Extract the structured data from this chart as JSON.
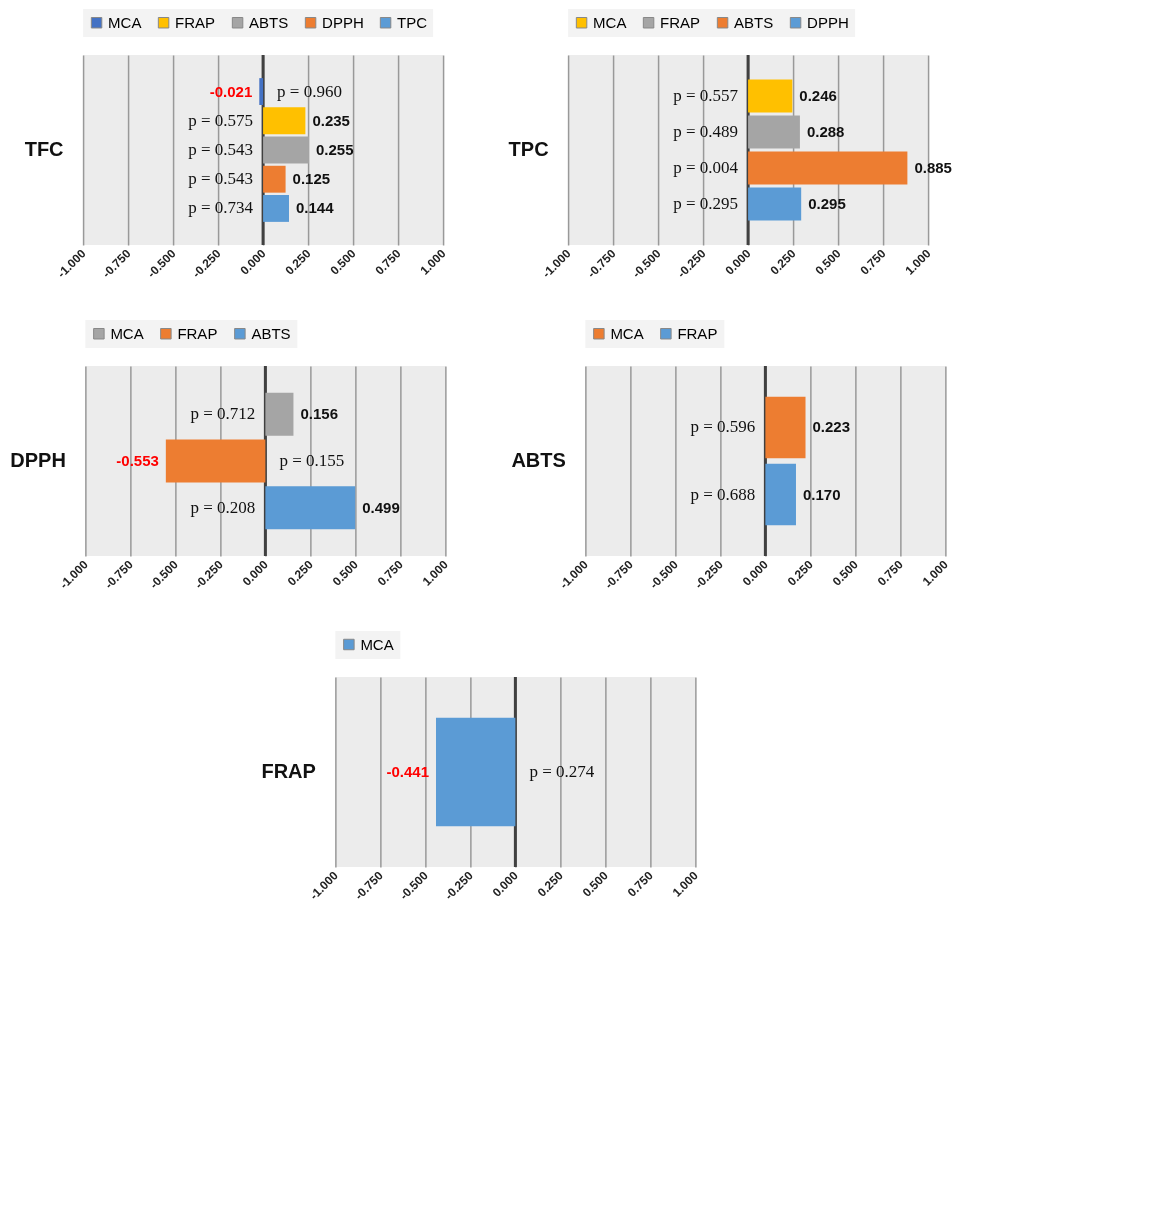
{
  "chart_data": [
    {
      "type": "bar",
      "orientation": "horizontal",
      "categories": [
        "TFC"
      ],
      "legend": "top",
      "grid": "x",
      "series": [
        {
          "name": "MCA",
          "color": "#4472c4",
          "values": [
            -0.021
          ],
          "value_labels": [
            "-0.021"
          ]
        },
        {
          "name": "FRAP",
          "color": "#ffc000",
          "values": [
            0.235
          ],
          "value_labels": [
            "0.235"
          ]
        },
        {
          "name": "ABTS",
          "color": "#a5a5a5",
          "values": [
            0.255
          ],
          "value_labels": [
            "0.255"
          ]
        },
        {
          "name": "DPPH",
          "color": "#ed7d31",
          "values": [
            0.125
          ],
          "value_labels": [
            "0.125"
          ]
        },
        {
          "name": "TPC",
          "color": "#5b9bd5",
          "values": [
            0.144
          ],
          "value_labels": [
            "0.144"
          ]
        }
      ],
      "annotations": [
        "p = 0.960",
        "p = 0.575",
        "p = 0.543",
        "p = 0.543",
        "p = 0.734"
      ],
      "xlim": [
        -1,
        1
      ],
      "xticks": [
        {
          "value": -1,
          "label": "-1.000"
        },
        {
          "value": -0.75,
          "label": "-0.750"
        },
        {
          "value": -0.5,
          "label": "-0.500"
        },
        {
          "value": -0.25,
          "label": "-0.250"
        },
        {
          "value": 0,
          "label": "0.000"
        },
        {
          "value": 0.25,
          "label": "0.250"
        },
        {
          "value": 0.5,
          "label": "0.500"
        },
        {
          "value": 0.75,
          "label": "0.750"
        },
        {
          "value": 1,
          "label": "1.000"
        }
      ],
      "ref_lines": [
        {
          "axis": "x",
          "value": 0,
          "color": "#404040"
        }
      ]
    },
    {
      "type": "bar",
      "orientation": "horizontal",
      "categories": [
        "TPC"
      ],
      "legend": "top",
      "grid": "x",
      "series": [
        {
          "name": "MCA",
          "color": "#ffc000",
          "values": [
            0.246
          ],
          "value_labels": [
            "0.246"
          ]
        },
        {
          "name": "FRAP",
          "color": "#a5a5a5",
          "values": [
            0.288
          ],
          "value_labels": [
            "0.288"
          ]
        },
        {
          "name": "ABTS",
          "color": "#ed7d31",
          "values": [
            0.885
          ],
          "value_labels": [
            "0.885"
          ]
        },
        {
          "name": "DPPH",
          "color": "#5b9bd5",
          "values": [
            0.295
          ],
          "value_labels": [
            "0.295"
          ]
        }
      ],
      "annotations": [
        "p = 0.557",
        "p = 0.489",
        "p = 0.004",
        "p = 0.295"
      ],
      "xlim": [
        -1,
        1
      ],
      "xticks": [
        {
          "value": -1,
          "label": "-1.000"
        },
        {
          "value": -0.75,
          "label": "-0.750"
        },
        {
          "value": -0.5,
          "label": "-0.500"
        },
        {
          "value": -0.25,
          "label": "-0.250"
        },
        {
          "value": 0,
          "label": "0.000"
        },
        {
          "value": 0.25,
          "label": "0.250"
        },
        {
          "value": 0.5,
          "label": "0.500"
        },
        {
          "value": 0.75,
          "label": "0.750"
        },
        {
          "value": 1,
          "label": "1.000"
        }
      ],
      "ref_lines": [
        {
          "axis": "x",
          "value": 0,
          "color": "#404040"
        }
      ]
    },
    {
      "type": "bar",
      "orientation": "horizontal",
      "categories": [
        "DPPH"
      ],
      "legend": "top",
      "grid": "x",
      "series": [
        {
          "name": "MCA",
          "color": "#a5a5a5",
          "values": [
            0.156
          ],
          "value_labels": [
            "0.156"
          ]
        },
        {
          "name": "FRAP",
          "color": "#ed7d31",
          "values": [
            -0.553
          ],
          "value_labels": [
            "-0.553"
          ]
        },
        {
          "name": "ABTS",
          "color": "#5b9bd5",
          "values": [
            0.499
          ],
          "value_labels": [
            "0.499"
          ]
        }
      ],
      "annotations": [
        "p = 0.712",
        "p = 0.155",
        "p = 0.208"
      ],
      "xlim": [
        -1,
        1
      ],
      "xticks": [
        {
          "value": -1,
          "label": "-1.000"
        },
        {
          "value": -0.75,
          "label": "-0.750"
        },
        {
          "value": -0.5,
          "label": "-0.500"
        },
        {
          "value": -0.25,
          "label": "-0.250"
        },
        {
          "value": 0,
          "label": "0.000"
        },
        {
          "value": 0.25,
          "label": "0.250"
        },
        {
          "value": 0.5,
          "label": "0.500"
        },
        {
          "value": 0.75,
          "label": "0.750"
        },
        {
          "value": 1,
          "label": "1.000"
        }
      ],
      "ref_lines": [
        {
          "axis": "x",
          "value": 0,
          "color": "#404040"
        }
      ]
    },
    {
      "type": "bar",
      "orientation": "horizontal",
      "categories": [
        "ABTS"
      ],
      "legend": "top",
      "grid": "x",
      "series": [
        {
          "name": "MCA",
          "color": "#ed7d31",
          "values": [
            0.223
          ],
          "value_labels": [
            "0.223"
          ]
        },
        {
          "name": "FRAP",
          "color": "#5b9bd5",
          "values": [
            0.17
          ],
          "value_labels": [
            "0.170"
          ]
        }
      ],
      "annotations": [
        "p = 0.596",
        "p = 0.688"
      ],
      "xlim": [
        -1,
        1
      ],
      "xticks": [
        {
          "value": -1,
          "label": "-1.000"
        },
        {
          "value": -0.75,
          "label": "-0.750"
        },
        {
          "value": -0.5,
          "label": "-0.500"
        },
        {
          "value": -0.25,
          "label": "-0.250"
        },
        {
          "value": 0,
          "label": "0.000"
        },
        {
          "value": 0.25,
          "label": "0.250"
        },
        {
          "value": 0.5,
          "label": "0.500"
        },
        {
          "value": 0.75,
          "label": "0.750"
        },
        {
          "value": 1,
          "label": "1.000"
        }
      ],
      "ref_lines": [
        {
          "axis": "x",
          "value": 0,
          "color": "#404040"
        }
      ]
    },
    {
      "type": "bar",
      "orientation": "horizontal",
      "categories": [
        "FRAP"
      ],
      "legend": "top",
      "grid": "x",
      "series": [
        {
          "name": "MCA",
          "color": "#5b9bd5",
          "values": [
            -0.441
          ],
          "value_labels": [
            "-0.441"
          ]
        }
      ],
      "annotations": [
        "p = 0.274"
      ],
      "xlim": [
        -1,
        1
      ],
      "xticks": [
        {
          "value": -1,
          "label": "-1.000"
        },
        {
          "value": -0.75,
          "label": "-0.750"
        },
        {
          "value": -0.5,
          "label": "-0.500"
        },
        {
          "value": -0.25,
          "label": "-0.250"
        },
        {
          "value": 0,
          "label": "0.000"
        },
        {
          "value": 0.25,
          "label": "0.250"
        },
        {
          "value": 0.5,
          "label": "0.500"
        },
        {
          "value": 0.75,
          "label": "0.750"
        },
        {
          "value": 1,
          "label": "1.000"
        }
      ],
      "ref_lines": [
        {
          "axis": "x",
          "value": 0,
          "color": "#404040"
        }
      ]
    }
  ]
}
